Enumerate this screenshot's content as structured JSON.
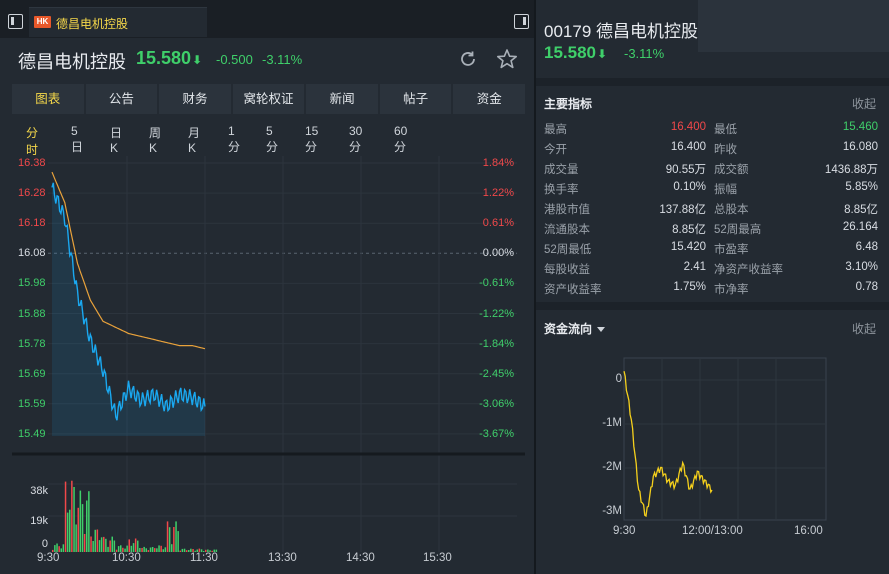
{
  "tab": {
    "market_badge": "HK",
    "label": "德昌电机控股"
  },
  "header": {
    "name": "德昌电机控股",
    "price": "15.580",
    "change": "-0.500",
    "change_pct": "-3.11%"
  },
  "main_tabs": [
    "图表",
    "公告",
    "财务",
    "窝轮权证",
    "新闻",
    "帖子",
    "资金"
  ],
  "periods": [
    "分时",
    "5日",
    "日K",
    "周K",
    "月K",
    "1分",
    "5分",
    "15分",
    "30分",
    "60分"
  ],
  "price_axis": [
    {
      "price": "16.38",
      "pct": "1.84%"
    },
    {
      "price": "16.28",
      "pct": "1.22%"
    },
    {
      "price": "16.18",
      "pct": "0.61%"
    },
    {
      "price": "16.08",
      "pct": "0.00%"
    },
    {
      "price": "15.98",
      "pct": "-0.61%"
    },
    {
      "price": "15.88",
      "pct": "-1.22%"
    },
    {
      "price": "15.78",
      "pct": "-1.84%"
    },
    {
      "price": "15.69",
      "pct": "-2.45%"
    },
    {
      "price": "15.59",
      "pct": "-3.06%"
    },
    {
      "price": "15.49",
      "pct": "-3.67%"
    }
  ],
  "volume_axis": [
    "38k",
    "19k",
    "0"
  ],
  "time_axis": [
    "9:30",
    "10:30",
    "11:30",
    "13:30",
    "14:30",
    "15:30"
  ],
  "colors": {
    "up": "#f0484a",
    "down": "#3fcf6a",
    "price_line": "#1aa8f0",
    "avg_line": "#e9a23b",
    "accent": "#f5d84a",
    "flow_line": "#f5d01c"
  },
  "right": {
    "code": "00179",
    "name": "德昌电机控股",
    "price": "15.580",
    "change_pct": "-3.11%",
    "indicators_title": "主要指标",
    "collapse_label": "收起",
    "indicators": [
      {
        "l": "最高",
        "lv": "16.400",
        "lc": "red",
        "r": "最低",
        "rv": "15.460",
        "rc": "green"
      },
      {
        "l": "今开",
        "lv": "16.400",
        "lc": "white",
        "r": "昨收",
        "rv": "16.080",
        "rc": "white"
      },
      {
        "l": "成交量",
        "lv": "90.55万",
        "lc": "white",
        "r": "成交额",
        "rv": "1436.88万",
        "rc": "white"
      },
      {
        "l": "换手率",
        "lv": "0.10%",
        "lc": "white",
        "r": "振幅",
        "rv": "5.85%",
        "rc": "white"
      },
      {
        "l": "港股市值",
        "lv": "137.88亿",
        "lc": "white",
        "r": "总股本",
        "rv": "8.85亿",
        "rc": "white"
      },
      {
        "l": "流通股本",
        "lv": "8.85亿",
        "lc": "white",
        "r": "52周最高",
        "rv": "26.164",
        "rc": "white"
      },
      {
        "l": "52周最低",
        "lv": "15.420",
        "lc": "white",
        "r": "市盈率",
        "rv": "6.48",
        "rc": "white"
      },
      {
        "l": "每股收益",
        "lv": "2.41",
        "lc": "white",
        "r": "净资产收益率",
        "rv": "3.10%",
        "rc": "white"
      },
      {
        "l": "资产收益率",
        "lv": "1.75%",
        "lc": "white",
        "r": "市净率",
        "rv": "0.78",
        "rc": "white"
      }
    ],
    "flow_title": "资金流向",
    "flow_axis": [
      "0",
      "-1M",
      "-2M",
      "-3M"
    ],
    "flow_time": [
      "9:30",
      "12:00/13:00",
      "16:00"
    ]
  },
  "chart_data": [
    {
      "type": "line",
      "series": [
        {
          "name": "",
          "x": [
            "9:30",
            "9:40",
            "9:50",
            "10:00",
            "10:10",
            "10:20",
            "10:30",
            "10:40",
            "10:50",
            "11:00",
            "11:10",
            "11:20",
            "11:30"
          ],
          "values": [
            16.3,
            16.2,
            15.95,
            15.8,
            15.7,
            15.55,
            15.64,
            15.6,
            15.62,
            15.58,
            15.62,
            15.61,
            15.58
          ]
        },
        {
          "name": "",
          "x": [
            "9:30",
            "9:40",
            "9:50",
            "10:00",
            "10:10",
            "10:20",
            "10:30",
            "10:40",
            "10:50",
            "11:00",
            "11:10",
            "11:20",
            "11:30"
          ],
          "values": [
            16.35,
            16.25,
            16.05,
            15.93,
            15.86,
            15.84,
            15.82,
            15.81,
            15.8,
            15.79,
            15.78,
            15.78,
            15.77
          ]
        }
      ],
      "ylim": [
        15.44,
        16.4
      ],
      "xlabel": "",
      "ylabel": ""
    },
    {
      "type": "bar",
      "categories": [
        "9:30",
        "9:40",
        "9:50",
        "10:00",
        "10:10",
        "10:20",
        "10:30",
        "10:40",
        "10:50",
        "11:00",
        "11:10",
        "11:20",
        "11:30"
      ],
      "values": [
        5000,
        43000,
        36000,
        14000,
        9000,
        4000,
        8000,
        3000,
        4000,
        18000,
        2000,
        2000,
        1500
      ],
      "ylim": [
        0,
        48000
      ]
    },
    {
      "type": "line",
      "x": [
        "9:30",
        "9:40",
        "9:50",
        "10:00",
        "10:10",
        "10:20",
        "10:30",
        "10:40",
        "10:50",
        "11:00",
        "11:10",
        "11:20",
        "11:30"
      ],
      "values": [
        0.2,
        -0.9,
        -2.5,
        -3.1,
        -2.2,
        -2.0,
        -2.3,
        -2.4,
        -1.9,
        -2.5,
        -2.1,
        -2.3,
        -2.5
      ],
      "ylim": [
        -3.2,
        0.5
      ],
      "xlabel": "",
      "ylabel": ""
    }
  ]
}
